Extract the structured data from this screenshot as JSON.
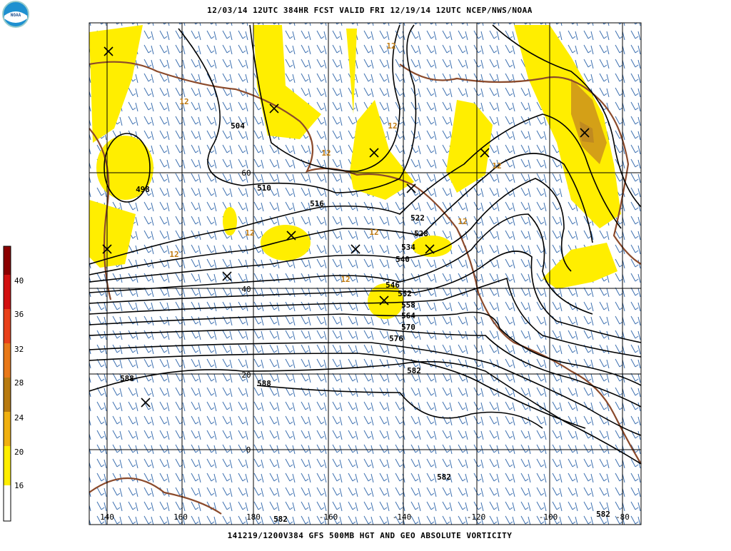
{
  "header": {
    "title": "12/03/14 12UTC  384HR  FCST VALID FRI 12/19/14 12UTC  NCEP/NWS/NOAA",
    "logo": "NOAA"
  },
  "footer": {
    "caption": "141219/1200V384 GFS 500MB HGT AND GEO ABSOLUTE VORTICITY"
  },
  "color_scale": {
    "labels": [
      "40",
      "36",
      "32",
      "28",
      "24",
      "20",
      "16"
    ]
  },
  "map": {
    "longitude_labels": [
      "140",
      "160",
      "180",
      "-160",
      "-140",
      "-120",
      "-100",
      "-80"
    ],
    "latitude_labels": [
      "60",
      "40",
      "20",
      "0"
    ],
    "height_labels": [
      "504",
      "498",
      "510",
      "516",
      "522",
      "528",
      "534",
      "540",
      "546",
      "552",
      "558",
      "564",
      "570",
      "576",
      "582",
      "588",
      "588",
      "582",
      "582",
      "582"
    ],
    "vorticity_labels": [
      "12",
      "12",
      "12",
      "12",
      "12",
      "12",
      "12",
      "12",
      "12",
      "12"
    ]
  }
}
